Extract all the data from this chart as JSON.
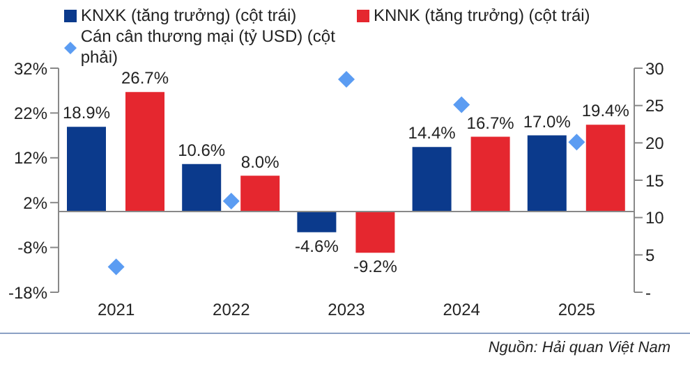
{
  "chart_data": {
    "type": "bar",
    "categories": [
      "2021",
      "2022",
      "2023",
      "2024",
      "2025"
    ],
    "series": [
      {
        "name": "KNXK (tăng trưởng) (cột trái)",
        "color": "#0b3a8c",
        "values": [
          18.9,
          10.6,
          -4.6,
          14.4,
          17.0
        ],
        "value_labels": [
          "18.9%",
          "10.6%",
          "-4.6%",
          "14.4%",
          "17.0%"
        ]
      },
      {
        "name": "KNNK (tăng trưởng) (cột trái)",
        "color": "#e5272f",
        "values": [
          26.7,
          8.0,
          -9.2,
          16.7,
          19.4
        ],
        "value_labels": [
          "26.7%",
          "8.0%",
          "-9.2%",
          "16.7%",
          "19.4%"
        ]
      },
      {
        "name": "Cán cân thương mại (tỷ USD) (cột phải)",
        "type": "scatter",
        "axis": "y2",
        "color": "#5b9cf2",
        "marker": "diamond",
        "values": [
          3.4,
          12.2,
          28.5,
          25.1,
          20.1
        ]
      }
    ],
    "ylim": [
      -18,
      32
    ],
    "yticks": [
      {
        "value": -18,
        "label": "-18%"
      },
      {
        "value": -8,
        "label": "-8%"
      },
      {
        "value": 2,
        "label": "2%"
      },
      {
        "value": 12,
        "label": "12%"
      },
      {
        "value": 22,
        "label": "22%"
      },
      {
        "value": 32,
        "label": "32%"
      }
    ],
    "y2lim": [
      0,
      30
    ],
    "y2ticks": [
      {
        "value": 0,
        "label": "-"
      },
      5,
      10,
      15,
      20,
      25,
      30
    ],
    "legend": "top",
    "annotations": [
      "Nguồn: Hải quan Việt Nam"
    ]
  }
}
